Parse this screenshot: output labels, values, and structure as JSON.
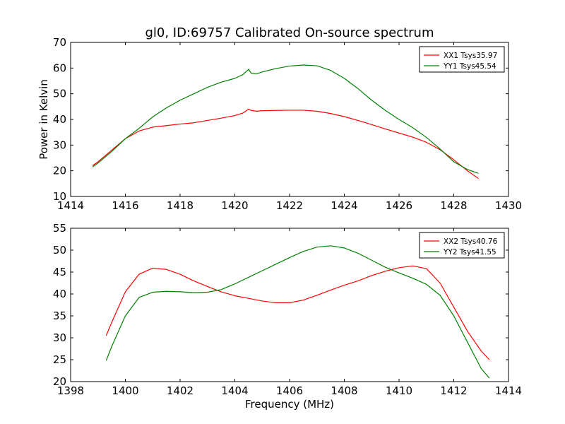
{
  "chart_data": [
    {
      "type": "line",
      "title": "gl0, ID:69757 Calibrated On-source spectrum",
      "xlabel": "",
      "ylabel": "Power in Kelvin",
      "xlim": [
        1414,
        1430
      ],
      "ylim": [
        10,
        70
      ],
      "xticks": [
        1414,
        1416,
        1418,
        1420,
        1422,
        1424,
        1426,
        1428,
        1430
      ],
      "yticks": [
        10,
        20,
        30,
        40,
        50,
        60,
        70
      ],
      "grid": false,
      "legend_position": "top-right",
      "series": [
        {
          "name": "XX1 Tsys35.97",
          "color": "#ff0000",
          "x": [
            1414.8,
            1415.0,
            1415.5,
            1416.0,
            1416.5,
            1417.0,
            1417.5,
            1418.0,
            1418.5,
            1419.0,
            1419.5,
            1420.0,
            1420.3,
            1420.5,
            1420.6,
            1420.8,
            1421.0,
            1421.5,
            1422.0,
            1422.5,
            1423.0,
            1423.5,
            1424.0,
            1424.5,
            1425.0,
            1425.5,
            1426.0,
            1426.5,
            1427.0,
            1427.5,
            1428.0,
            1428.5,
            1428.9
          ],
          "y": [
            22,
            23.5,
            28,
            32.5,
            35.5,
            37,
            37.6,
            38.2,
            38.7,
            39.6,
            40.5,
            41.5,
            42.5,
            44,
            43.5,
            43.2,
            43.4,
            43.5,
            43.6,
            43.6,
            43.2,
            42.3,
            41.1,
            39.6,
            38,
            36.3,
            34.7,
            33.1,
            31.1,
            28.2,
            24.3,
            20,
            17
          ]
        },
        {
          "name": "YY1 Tsys45.54",
          "color": "#008000",
          "x": [
            1414.8,
            1415.0,
            1415.5,
            1416.0,
            1416.5,
            1417.0,
            1417.5,
            1418.0,
            1418.5,
            1419.0,
            1419.5,
            1420.0,
            1420.3,
            1420.5,
            1420.6,
            1420.8,
            1421.0,
            1421.5,
            1422.0,
            1422.5,
            1423.0,
            1423.5,
            1424.0,
            1424.5,
            1425.0,
            1425.5,
            1426.0,
            1426.5,
            1427.0,
            1427.5,
            1428.0,
            1428.5,
            1428.9
          ],
          "y": [
            21.5,
            23,
            27.5,
            32.5,
            36.5,
            41,
            44.5,
            47.5,
            50,
            52.5,
            54.5,
            56,
            57.5,
            59.5,
            58,
            57.8,
            58.5,
            59.8,
            60.8,
            61.2,
            60.9,
            59.1,
            56,
            52,
            47.5,
            43.5,
            40,
            36.8,
            33,
            28.5,
            23.5,
            20.5,
            19
          ]
        }
      ]
    },
    {
      "type": "line",
      "title": "",
      "xlabel": "Frequency (MHz)",
      "ylabel": "",
      "xlim": [
        1398,
        1414
      ],
      "ylim": [
        20,
        55
      ],
      "xticks": [
        1398,
        1400,
        1402,
        1404,
        1406,
        1408,
        1410,
        1412,
        1414
      ],
      "yticks": [
        20,
        25,
        30,
        35,
        40,
        45,
        50,
        55
      ],
      "grid": false,
      "legend_position": "top-right",
      "series": [
        {
          "name": "XX2 Tsys40.76",
          "color": "#ff0000",
          "x": [
            1399.3,
            1399.5,
            1400.0,
            1400.5,
            1401.0,
            1401.5,
            1402.0,
            1402.5,
            1403.0,
            1403.5,
            1404.0,
            1404.5,
            1405.0,
            1405.5,
            1406.0,
            1406.5,
            1407.0,
            1407.5,
            1408.0,
            1408.5,
            1409.0,
            1409.5,
            1410.0,
            1410.5,
            1411.0,
            1411.5,
            1412.0,
            1412.5,
            1413.0,
            1413.3
          ],
          "y": [
            30.5,
            33.5,
            40.5,
            44.5,
            45.9,
            45.6,
            44.5,
            43,
            41.7,
            40.5,
            39.6,
            39,
            38.4,
            38,
            38,
            38.6,
            39.7,
            40.9,
            42,
            43,
            44.2,
            45.2,
            46,
            46.4,
            45.8,
            42.5,
            37,
            31.5,
            27,
            25
          ]
        },
        {
          "name": "YY2 Tsys41.55",
          "color": "#008000",
          "x": [
            1399.3,
            1399.5,
            1400.0,
            1400.5,
            1401.0,
            1401.5,
            1402.0,
            1402.5,
            1403.0,
            1403.5,
            1404.0,
            1404.5,
            1405.0,
            1405.5,
            1406.0,
            1406.5,
            1407.0,
            1407.5,
            1408.0,
            1408.5,
            1409.0,
            1409.5,
            1410.0,
            1410.5,
            1411.0,
            1411.5,
            1412.0,
            1412.5,
            1413.0,
            1413.3
          ],
          "y": [
            24.8,
            28,
            35,
            39.2,
            40.4,
            40.6,
            40.5,
            40.3,
            40.4,
            41,
            42.3,
            43.8,
            45.3,
            46.8,
            48.3,
            49.7,
            50.7,
            51,
            50.5,
            49.3,
            47.7,
            46.1,
            44.8,
            43.6,
            42.2,
            39.7,
            35,
            29,
            23,
            20.8
          ]
        }
      ]
    }
  ]
}
